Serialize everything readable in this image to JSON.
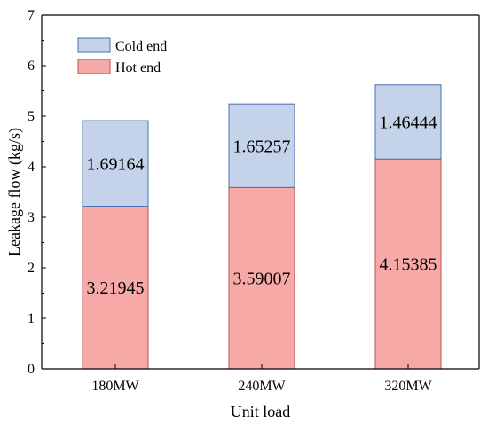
{
  "chart_data": {
    "type": "bar",
    "stacked": true,
    "title": "",
    "xlabel": "Unit load",
    "ylabel": "Leakage flow (kg/s)",
    "categories": [
      "180MW",
      "240MW",
      "320MW"
    ],
    "ylim": [
      0,
      7
    ],
    "yticks": [
      "0",
      "1",
      "2",
      "3",
      "4",
      "5",
      "6",
      "7"
    ],
    "grid": false,
    "legend_position": "top-left",
    "series": [
      {
        "name": "Hot end",
        "values": [
          3.21945,
          3.59007,
          4.15385
        ],
        "labels": [
          "3.21945",
          "3.59007",
          "4.15385"
        ],
        "color": "#f7a9a8",
        "edge": "#c0504d"
      },
      {
        "name": "Cold end",
        "values": [
          1.69164,
          1.65257,
          1.46444
        ],
        "labels": [
          "1.69164",
          "1.65257",
          "1.46444"
        ],
        "color": "#c5d3ea",
        "edge": "#4a6fb0"
      }
    ],
    "legend_order": [
      "Cold end",
      "Hot end"
    ]
  }
}
